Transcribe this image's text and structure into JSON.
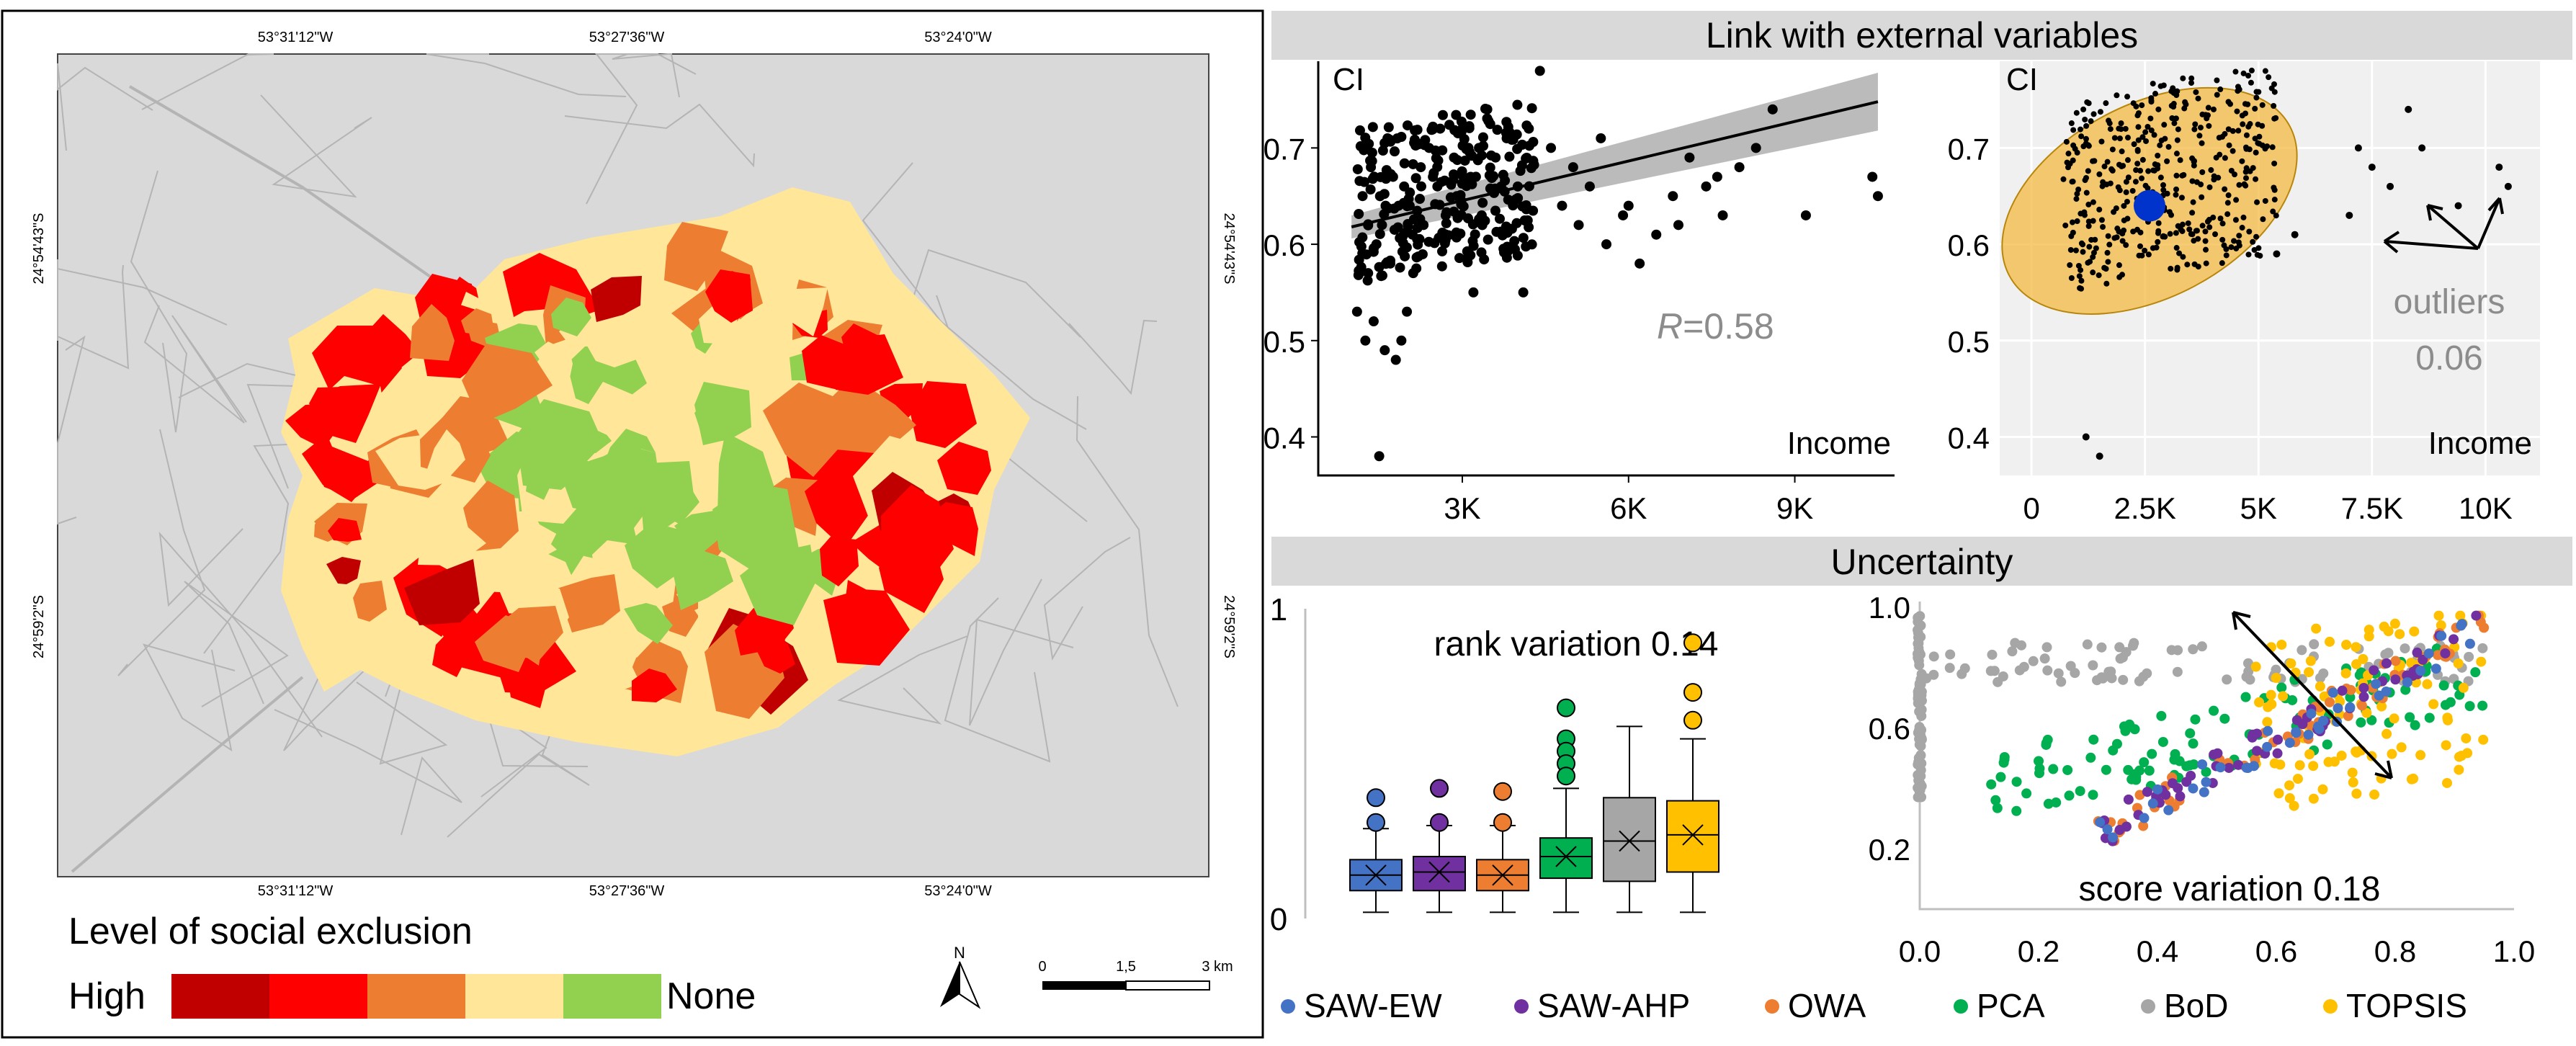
{
  "colors": {
    "high": "#c00000",
    "red": "#ff0000",
    "orange": "#ed7d31",
    "yellow": "#ffe699",
    "green": "#92d050",
    "map_bg": "#d9d9d9",
    "band": "#d9d9d9",
    "ellipse": "#f4b942",
    "outlier_dot": "#0033cc",
    "SAW-EW": "#4472c4",
    "SAW-AHP": "#7030a0",
    "OWA": "#ed7d31",
    "PCA": "#00b050",
    "BoD": "#a6a6a6",
    "TOPSIS": "#ffc000"
  },
  "map": {
    "coords_top": [
      "53°31'12\"W",
      "53°27'36\"W",
      "53°24'0\"W"
    ],
    "coords_bottom": [
      "53°31'12\"W",
      "53°27'36\"W",
      "53°24'0\"W"
    ],
    "coords_left": [
      "24°54'43\"S",
      "24°59'2\"S"
    ],
    "coords_right": [
      "24°54'43\"S",
      "24°59'2\"S"
    ],
    "legend_title": "Level of social exclusion",
    "legend_high": "High",
    "legend_none": "None",
    "north": "N",
    "scale_labels": [
      "0",
      "1,5",
      "3 km"
    ]
  },
  "headers": {
    "external": "Link with external variables",
    "uncertainty": "Uncertainty"
  },
  "chart_data": [
    {
      "type": "scatter",
      "title": "Link with external variables",
      "ylabel": "CI",
      "xlabel": "Income",
      "xticks": [
        "3K",
        "6K",
        "9K"
      ],
      "xtick_values": [
        3000,
        6000,
        9000
      ],
      "yticks": [
        "0.4",
        "0.5",
        "0.6",
        "0.7"
      ],
      "ytick_values": [
        0.4,
        0.5,
        0.6,
        0.7
      ],
      "xlim": [
        400,
        10800
      ],
      "ylim": [
        0.36,
        0.79
      ],
      "annotation_r": "R",
      "annotation_value": "=0.58",
      "fit": {
        "x0": 1000,
        "y0": 0.618,
        "x1": 10500,
        "y1": 0.748
      },
      "points": [
        [
          1500,
          0.38
        ],
        [
          1100,
          0.53
        ],
        [
          1250,
          0.5
        ],
        [
          1400,
          0.52
        ],
        [
          1600,
          0.49
        ],
        [
          1800,
          0.48
        ],
        [
          1900,
          0.5
        ],
        [
          2000,
          0.53
        ],
        [
          1300,
          0.57
        ],
        [
          1450,
          0.6
        ],
        [
          1550,
          0.62
        ],
        [
          1700,
          0.58
        ],
        [
          1850,
          0.64
        ],
        [
          1950,
          0.66
        ],
        [
          2100,
          0.61
        ],
        [
          2250,
          0.68
        ],
        [
          2400,
          0.7
        ],
        [
          2550,
          0.66
        ],
        [
          2700,
          0.63
        ],
        [
          2850,
          0.69
        ],
        [
          3000,
          0.72
        ],
        [
          3150,
          0.67
        ],
        [
          3300,
          0.7
        ],
        [
          3450,
          0.74
        ],
        [
          3600,
          0.69
        ],
        [
          3800,
          0.71
        ],
        [
          4000,
          0.66
        ],
        [
          4200,
          0.72
        ],
        [
          4400,
          0.78
        ],
        [
          4600,
          0.7
        ],
        [
          4800,
          0.64
        ],
        [
          5000,
          0.68
        ],
        [
          5300,
          0.66
        ],
        [
          5600,
          0.6
        ],
        [
          5900,
          0.63
        ],
        [
          6200,
          0.58
        ],
        [
          6500,
          0.61
        ],
        [
          6800,
          0.65
        ],
        [
          7100,
          0.69
        ],
        [
          7400,
          0.66
        ],
        [
          7700,
          0.63
        ],
        [
          8000,
          0.68
        ],
        [
          8300,
          0.7
        ],
        [
          8600,
          0.74
        ],
        [
          9200,
          0.63
        ],
        [
          10400,
          0.67
        ],
        [
          10500,
          0.65
        ],
        [
          3200,
          0.55
        ],
        [
          4100,
          0.55
        ],
        [
          1200,
          0.65
        ],
        [
          1350,
          0.68
        ],
        [
          1650,
          0.71
        ],
        [
          1750,
          0.67
        ],
        [
          2050,
          0.64
        ],
        [
          2300,
          0.62
        ],
        [
          2600,
          0.72
        ],
        [
          2900,
          0.65
        ],
        [
          3350,
          0.63
        ],
        [
          3700,
          0.66
        ],
        [
          5100,
          0.62
        ],
        [
          5500,
          0.71
        ],
        [
          6000,
          0.64
        ],
        [
          6900,
          0.62
        ],
        [
          7600,
          0.67
        ]
      ]
    },
    {
      "type": "scatter",
      "ylabel": "CI",
      "xlabel": "Income",
      "xticks": [
        "0",
        "2.5K",
        "5K",
        "7.5K",
        "10K"
      ],
      "xtick_values": [
        0,
        2500,
        5000,
        7500,
        10000
      ],
      "yticks": [
        "0.4",
        "0.5",
        "0.6",
        "0.7"
      ],
      "ytick_values": [
        0.4,
        0.5,
        0.6,
        0.7
      ],
      "xlim": [
        -700,
        11200
      ],
      "ylim": [
        0.36,
        0.79
      ],
      "annotation": "outliers",
      "annotation_value": "0.06",
      "ellipse": {
        "cx": 2600,
        "cy": 0.645,
        "rx_data": 3500,
        "ry_data": 0.1,
        "angle_deg": -28
      },
      "center": [
        2600,
        0.64
      ],
      "outliers": [
        [
          7200,
          0.7
        ],
        [
          7500,
          0.68
        ],
        [
          7900,
          0.66
        ],
        [
          8300,
          0.74
        ],
        [
          8600,
          0.7
        ],
        [
          9400,
          0.64
        ],
        [
          10300,
          0.68
        ],
        [
          10500,
          0.66
        ],
        [
          1500,
          0.38
        ],
        [
          1200,
          0.4
        ],
        [
          5400,
          0.59
        ],
        [
          5800,
          0.61
        ],
        [
          7000,
          0.63
        ]
      ]
    },
    {
      "type": "box",
      "title": "Uncertainty",
      "annotation": "rank variation 0.14",
      "yticks": [
        "0",
        "1"
      ],
      "ytick_values": [
        0,
        1
      ],
      "ylim": [
        0,
        1
      ],
      "series": [
        {
          "name": "SAW-EW",
          "min": 0.02,
          "q1": 0.09,
          "median": 0.14,
          "q3": 0.19,
          "max": 0.29,
          "mean": 0.14,
          "outliers": [
            0.39,
            0.31
          ]
        },
        {
          "name": "SAW-AHP",
          "min": 0.02,
          "q1": 0.09,
          "median": 0.15,
          "q3": 0.2,
          "max": 0.3,
          "mean": 0.15,
          "outliers": [
            0.42,
            0.31
          ]
        },
        {
          "name": "OWA",
          "min": 0.02,
          "q1": 0.09,
          "median": 0.14,
          "q3": 0.19,
          "max": 0.3,
          "mean": 0.14,
          "outliers": [
            0.41,
            0.31
          ]
        },
        {
          "name": "PCA",
          "min": 0.02,
          "q1": 0.13,
          "median": 0.2,
          "q3": 0.26,
          "max": 0.42,
          "mean": 0.2,
          "outliers": [
            0.68,
            0.58,
            0.54,
            0.5,
            0.46
          ]
        },
        {
          "name": "BoD",
          "min": 0.02,
          "q1": 0.12,
          "median": 0.25,
          "q3": 0.39,
          "max": 0.62,
          "mean": 0.25,
          "outliers": []
        },
        {
          "name": "TOPSIS",
          "min": 0.02,
          "q1": 0.15,
          "median": 0.27,
          "q3": 0.38,
          "max": 0.58,
          "mean": 0.27,
          "outliers": [
            0.89,
            0.73,
            0.64
          ]
        }
      ]
    },
    {
      "type": "scatter",
      "annotation": "score variation 0.18",
      "xticks": [
        "0.0",
        "0.2",
        "0.4",
        "0.6",
        "0.8",
        "1.0"
      ],
      "xtick_values": [
        0,
        0.2,
        0.4,
        0.6,
        0.8,
        1.0
      ],
      "yticks": [
        "0.2",
        "0.6",
        "1.0"
      ],
      "ytick_values": [
        0.2,
        0.6,
        1.0
      ],
      "xlim": [
        0,
        1
      ],
      "ylim": [
        0,
        1
      ],
      "clusters": [
        {
          "name": "BoD",
          "x": [
            0.0,
            0.95
          ],
          "y": [
            0.75,
            0.88
          ],
          "n": 90
        },
        {
          "name": "PCA",
          "x": [
            0.1,
            0.95
          ],
          "y": [
            0.3,
            0.8
          ],
          "n": 110
        },
        {
          "name": "TOPSIS",
          "x": [
            0.55,
            0.95
          ],
          "y": [
            0.3,
            0.95
          ],
          "n": 110
        },
        {
          "name": "OWA",
          "x": [
            0.3,
            0.95
          ],
          "y": [
            0.25,
            0.95
          ],
          "n": 60
        },
        {
          "name": "SAW-AHP",
          "x": [
            0.3,
            0.95
          ],
          "y": [
            0.25,
            0.95
          ],
          "n": 60
        },
        {
          "name": "SAW-EW",
          "x": [
            0.3,
            0.95
          ],
          "y": [
            0.25,
            0.95
          ],
          "n": 40
        }
      ]
    }
  ],
  "legend": [
    "SAW-EW",
    "SAW-AHP",
    "OWA",
    "PCA",
    "BoD",
    "TOPSIS"
  ]
}
